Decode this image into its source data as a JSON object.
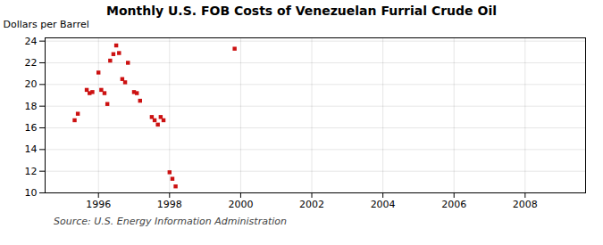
{
  "chart_data": {
    "type": "scatter",
    "title": "Monthly U.S. FOB Costs of Venezuelan Furrial Crude Oil",
    "ylabel": "Dollars per Barrel",
    "annotations": [
      "Source: U.S. Energy Information Administration"
    ],
    "x": [
      1995.33,
      1995.42,
      1995.67,
      1995.75,
      1995.83,
      1996.0,
      1996.08,
      1996.17,
      1996.25,
      1996.33,
      1996.42,
      1996.5,
      1996.58,
      1996.67,
      1996.75,
      1996.83,
      1997.0,
      1997.08,
      1997.17,
      1997.5,
      1997.58,
      1997.67,
      1997.75,
      1997.83,
      1998.0,
      1998.08,
      1998.17,
      1999.83
    ],
    "values": [
      16.7,
      17.3,
      19.5,
      19.2,
      19.3,
      21.1,
      19.5,
      19.2,
      18.2,
      22.2,
      22.8,
      23.6,
      22.9,
      20.5,
      20.2,
      22.0,
      19.3,
      19.2,
      18.5,
      17.0,
      16.7,
      16.3,
      17.0,
      16.7,
      11.9,
      11.3,
      10.6,
      23.3
    ],
    "color": "#cc1111",
    "marker": "square",
    "xlim": [
      1994.5,
      2009.7
    ],
    "ylim": [
      10,
      24.3
    ],
    "xticks": [
      1996,
      1998,
      2000,
      2002,
      2004,
      2006,
      2008
    ],
    "yticks": [
      10,
      12,
      14,
      16,
      18,
      20,
      22,
      24
    ],
    "grid": true
  }
}
